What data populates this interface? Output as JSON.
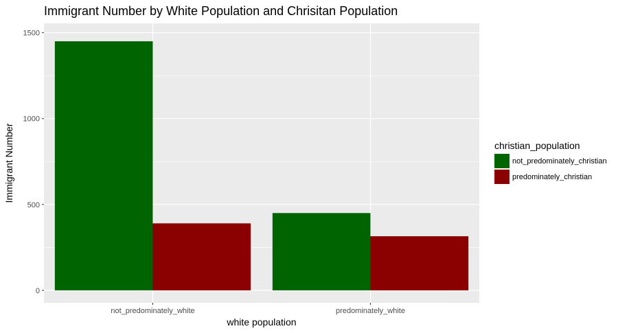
{
  "chart_data": {
    "type": "bar",
    "title": "Immigrant Number by White Population and Chrisitan Population",
    "xlabel": "white population",
    "ylabel": "Immigrant Number",
    "categories": [
      "not_predominately_white",
      "predominately_white"
    ],
    "series": [
      {
        "name": "not_predominately_christian",
        "color": "#006400",
        "values": [
          1450,
          450
        ]
      },
      {
        "name": "predominately_christian",
        "color": "#8b0000",
        "values": [
          390,
          315
        ]
      }
    ],
    "ylim": [
      0,
      1500
    ],
    "yticks": [
      0,
      500,
      1000,
      1500
    ],
    "grid": true,
    "panel_background": "#ebebeb",
    "legend": {
      "title": "christian_population",
      "placement": "right"
    }
  }
}
